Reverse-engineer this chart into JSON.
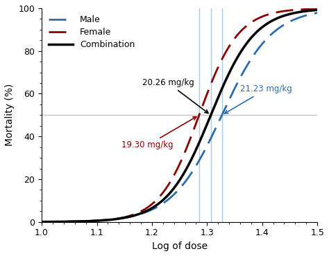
{
  "title": "",
  "xlabel": "Log of dose",
  "ylabel": "Mortality (%)",
  "xlim": [
    1.0,
    1.5
  ],
  "ylim": [
    0,
    100
  ],
  "xticks": [
    1.0,
    1.1,
    1.2,
    1.3,
    1.4,
    1.5
  ],
  "yticks": [
    0,
    20,
    40,
    60,
    80,
    100
  ],
  "ld50_female": 1.2856,
  "ld50_combination": 1.3068,
  "ld50_male": 1.3269,
  "female_color": "#8B0000",
  "male_color": "#2B6CB0",
  "combination_color": "#000000",
  "vline_color": "#A8C8E8",
  "hline_color": "#C0C0C0",
  "annotation_combination": "20.26 mg/kg",
  "annotation_female": "19.30 mg/kg",
  "annotation_male": "21.23 mg/kg",
  "female_k": 28.0,
  "male_k": 22.0,
  "combination_k": 25.0,
  "background_color": "#ffffff"
}
